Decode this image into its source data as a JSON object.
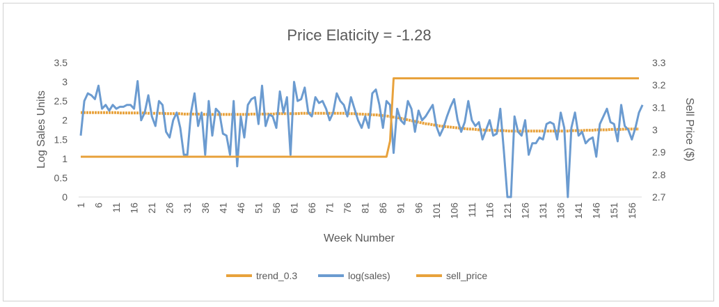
{
  "chart_data": {
    "type": "line",
    "title": "Price Elaticity = -1.28",
    "xlabel": "Week Number",
    "ylabel_left": "Log Sales Units",
    "ylabel_right": "Sell Price ($)",
    "x_tick_labels": [
      "1",
      "6",
      "11",
      "16",
      "21",
      "26",
      "31",
      "36",
      "41",
      "46",
      "51",
      "56",
      "61",
      "66",
      "71",
      "76",
      "81",
      "86",
      "91",
      "96",
      "101",
      "106",
      "111",
      "116",
      "121",
      "126",
      "131",
      "136",
      "141",
      "146",
      "151",
      "156"
    ],
    "ylim_left": [
      0,
      3.5
    ],
    "yticks_left": [
      "0",
      "0.5",
      "1",
      "1.5",
      "2",
      "2.5",
      "3",
      "3.5"
    ],
    "ylim_right": [
      2.7,
      3.3
    ],
    "yticks_right": [
      "2.7",
      "2.8",
      "2.9",
      "3",
      "3.1",
      "3.2",
      "3.3"
    ],
    "grid": false,
    "legend_position": "bottom",
    "colors": {
      "orange": "#E8A23C",
      "blue": "#6B9BD0"
    },
    "series": [
      {
        "name": "trend_0.3",
        "axis": "left",
        "color": "#E8A23C",
        "values": [
          2.2,
          2.2,
          2.2,
          2.2,
          2.2,
          2.2,
          2.2,
          2.2,
          2.2,
          2.2,
          2.2,
          2.19,
          2.19,
          2.19,
          2.19,
          2.19,
          2.19,
          2.19,
          2.19,
          2.18,
          2.18,
          2.18,
          2.18,
          2.18,
          2.17,
          2.17,
          2.17,
          2.17,
          2.17,
          2.16,
          2.16,
          2.16,
          2.16,
          2.16,
          2.16,
          2.15,
          2.15,
          2.15,
          2.15,
          2.15,
          2.15,
          2.15,
          2.15,
          2.15,
          2.15,
          2.15,
          2.15,
          2.15,
          2.16,
          2.16,
          2.16,
          2.16,
          2.16,
          2.16,
          2.16,
          2.17,
          2.17,
          2.17,
          2.17,
          2.17,
          2.17,
          2.17,
          2.18,
          2.18,
          2.18,
          2.18,
          2.18,
          2.18,
          2.18,
          2.18,
          2.18,
          2.18,
          2.18,
          2.18,
          2.18,
          2.17,
          2.17,
          2.17,
          2.16,
          2.16,
          2.15,
          2.15,
          2.14,
          2.14,
          2.13,
          2.12,
          2.11,
          2.1,
          2.08,
          2.07,
          2.05,
          2.03,
          2.01,
          1.99,
          1.97,
          1.95,
          1.93,
          1.91,
          1.9,
          1.88,
          1.87,
          1.85,
          1.84,
          1.83,
          1.82,
          1.81,
          1.8,
          1.79,
          1.78,
          1.77,
          1.77,
          1.76,
          1.75,
          1.75,
          1.74,
          1.74,
          1.74,
          1.73,
          1.73,
          1.73,
          1.72,
          1.72,
          1.72,
          1.72,
          1.72,
          1.72,
          1.72,
          1.72,
          1.72,
          1.72,
          1.72,
          1.72,
          1.72,
          1.72,
          1.72,
          1.72,
          1.72,
          1.72,
          1.73,
          1.73,
          1.73,
          1.73,
          1.74,
          1.74,
          1.74,
          1.75,
          1.75,
          1.75,
          1.75,
          1.76,
          1.76,
          1.76,
          1.76,
          1.77,
          1.77,
          1.77,
          1.77,
          1.77
        ]
      },
      {
        "name": "log(sales)",
        "axis": "left",
        "color": "#6B9BD0",
        "values": [
          1.6,
          2.5,
          2.7,
          2.65,
          2.55,
          2.9,
          2.3,
          2.4,
          2.25,
          2.4,
          2.3,
          2.35,
          2.35,
          2.4,
          2.4,
          2.3,
          3.02,
          2.0,
          2.2,
          2.65,
          2.1,
          1.85,
          2.5,
          2.4,
          1.7,
          1.55,
          2.0,
          2.2,
          1.8,
          1.1,
          1.1,
          2.2,
          2.7,
          1.85,
          2.2,
          1.1,
          2.5,
          1.6,
          2.3,
          2.2,
          1.65,
          1.6,
          1.1,
          2.5,
          0.8,
          2.1,
          1.55,
          2.4,
          2.55,
          2.6,
          1.9,
          2.9,
          1.85,
          2.15,
          2.1,
          1.8,
          2.75,
          2.2,
          2.6,
          1.1,
          3.0,
          2.5,
          2.55,
          2.85,
          2.2,
          2.1,
          2.6,
          2.45,
          2.5,
          2.3,
          2.0,
          2.2,
          2.7,
          2.5,
          2.4,
          2.1,
          2.6,
          2.3,
          2.0,
          1.8,
          2.1,
          1.8,
          2.7,
          2.8,
          2.4,
          1.8,
          2.5,
          2.4,
          1.15,
          2.3,
          2.0,
          1.9,
          2.5,
          2.3,
          1.7,
          2.25,
          2.0,
          2.1,
          2.25,
          2.4,
          1.85,
          1.6,
          1.8,
          2.1,
          2.35,
          2.55,
          2.0,
          1.7,
          1.95,
          2.5,
          2.0,
          1.85,
          1.95,
          1.5,
          1.75,
          2.0,
          1.6,
          1.65,
          2.3,
          1.2,
          0.0,
          0.0,
          2.1,
          1.7,
          1.6,
          2.0,
          1.1,
          1.4,
          1.4,
          1.55,
          1.5,
          1.9,
          1.95,
          1.9,
          1.5,
          2.2,
          1.8,
          0.0,
          1.8,
          2.2,
          1.6,
          1.7,
          1.4,
          1.5,
          1.55,
          1.05,
          1.9,
          2.1,
          2.3,
          1.95,
          1.9,
          1.45,
          2.4,
          1.85,
          1.75,
          1.5,
          1.8,
          2.2,
          2.4
        ]
      },
      {
        "name": "sell_price",
        "axis": "right",
        "color": "#E8A23C",
        "values": [
          2.88,
          2.88,
          2.88,
          2.88,
          2.88,
          2.88,
          2.88,
          2.88,
          2.88,
          2.88,
          2.88,
          2.88,
          2.88,
          2.88,
          2.88,
          2.88,
          2.88,
          2.88,
          2.88,
          2.88,
          2.88,
          2.88,
          2.88,
          2.88,
          2.88,
          2.88,
          2.88,
          2.88,
          2.88,
          2.88,
          2.88,
          2.88,
          2.88,
          2.88,
          2.88,
          2.88,
          2.88,
          2.88,
          2.88,
          2.88,
          2.88,
          2.88,
          2.88,
          2.88,
          2.88,
          2.88,
          2.88,
          2.88,
          2.88,
          2.88,
          2.88,
          2.88,
          2.88,
          2.88,
          2.88,
          2.88,
          2.88,
          2.88,
          2.88,
          2.88,
          2.88,
          2.88,
          2.88,
          2.88,
          2.88,
          2.88,
          2.88,
          2.88,
          2.88,
          2.88,
          2.88,
          2.88,
          2.88,
          2.88,
          2.88,
          2.88,
          2.88,
          2.88,
          2.88,
          2.88,
          2.88,
          2.88,
          2.88,
          2.88,
          2.88,
          2.88,
          2.88,
          2.95,
          3.23,
          3.23,
          3.23,
          3.23,
          3.23,
          3.23,
          3.23,
          3.23,
          3.23,
          3.23,
          3.23,
          3.23,
          3.23,
          3.23,
          3.23,
          3.23,
          3.23,
          3.23,
          3.23,
          3.23,
          3.23,
          3.23,
          3.23,
          3.23,
          3.23,
          3.23,
          3.23,
          3.23,
          3.23,
          3.23,
          3.23,
          3.23,
          3.23,
          3.23,
          3.23,
          3.23,
          3.23,
          3.23,
          3.23,
          3.23,
          3.23,
          3.23,
          3.23,
          3.23,
          3.23,
          3.23,
          3.23,
          3.23,
          3.23,
          3.23,
          3.23,
          3.23,
          3.23,
          3.23,
          3.23,
          3.23,
          3.23,
          3.23,
          3.23,
          3.23,
          3.23,
          3.23,
          3.23,
          3.23,
          3.23,
          3.23,
          3.23,
          3.23,
          3.23,
          3.23
        ]
      }
    ]
  }
}
